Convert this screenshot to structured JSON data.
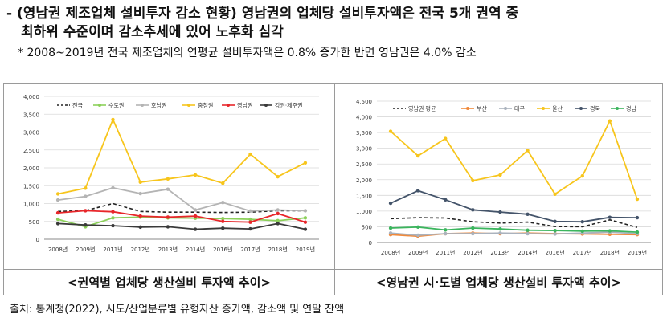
{
  "header": {
    "line1": "- (영남권 제조업체 설비투자 감소 현황) 영남권의 업체당 설비투자액은 전국 5개 권역 중",
    "line2": "최하위 수준이며 감소추세에 있어 노후화 심각",
    "note": "* 2008~2019년 전국 제조업체의 연평균 설비투자액은 0.8% 증가한 반면 영남권은 4.0% 감소"
  },
  "captions": {
    "left": "<권역별 업체당 생산설비 투자액 추이>",
    "right": "<영남권 시·도별 업체당 생산설비 투자액 추이>"
  },
  "source": "출처: 통계청(2022), 시도/산업분류별 유형자산 증가액, 감소액 및 연말 잔액",
  "chart_data": [
    {
      "type": "line",
      "categories": [
        "2008년",
        "2009년",
        "2011년",
        "2012년",
        "2013년",
        "2014년",
        "2016년",
        "2017년",
        "2018년",
        "2019년"
      ],
      "ylim": [
        0,
        4000
      ],
      "yticks": [
        "0",
        "500",
        "1,000",
        "1,500",
        "2,000",
        "2,500",
        "3,000",
        "3,500",
        "4,000"
      ],
      "grid": true,
      "legend": "top",
      "series": [
        {
          "name": "전국",
          "color": "#222222",
          "dash": true,
          "values": [
            780,
            800,
            1000,
            780,
            760,
            760,
            750,
            760,
            800,
            800
          ]
        },
        {
          "name": "수도권",
          "color": "#8cd05a",
          "dash": false,
          "values": [
            560,
            350,
            600,
            620,
            600,
            590,
            580,
            560,
            520,
            600
          ]
        },
        {
          "name": "호남권",
          "color": "#b4b4b4",
          "dash": false,
          "values": [
            1100,
            1200,
            1440,
            1280,
            1400,
            820,
            1030,
            790,
            820,
            800
          ]
        },
        {
          "name": "충청권",
          "color": "#f7c51c",
          "dash": false,
          "values": [
            1270,
            1430,
            3350,
            1600,
            1690,
            1800,
            1570,
            2380,
            1750,
            2140
          ]
        },
        {
          "name": "영남권",
          "color": "#e8262a",
          "dash": false,
          "values": [
            740,
            800,
            770,
            650,
            620,
            650,
            500,
            480,
            720,
            480
          ]
        },
        {
          "name": "강원·제주권",
          "color": "#3a3a3a",
          "dash": false,
          "values": [
            440,
            400,
            380,
            340,
            350,
            280,
            310,
            290,
            440,
            280
          ]
        }
      ]
    },
    {
      "type": "line",
      "categories": [
        "2008년",
        "2009년",
        "2011년",
        "2012년",
        "2013년",
        "2014년",
        "2016년",
        "2017년",
        "2018년",
        "2019년"
      ],
      "ylim": [
        0,
        4500
      ],
      "yticks": [
        "0",
        "500",
        "1,000",
        "1,500",
        "2,000",
        "2,500",
        "3,000",
        "3,500",
        "4,000",
        "4,500"
      ],
      "grid": true,
      "legend": "top",
      "series": [
        {
          "name": "영남권 평균",
          "color": "#222222",
          "dash": true,
          "values": [
            760,
            790,
            780,
            660,
            620,
            650,
            510,
            500,
            720,
            480
          ]
        },
        {
          "name": "부산",
          "color": "#f08a3c",
          "dash": false,
          "values": [
            250,
            200,
            280,
            300,
            280,
            300,
            280,
            270,
            260,
            250
          ]
        },
        {
          "name": "대구",
          "color": "#aab2bd",
          "dash": false,
          "values": [
            300,
            230,
            280,
            280,
            300,
            280,
            270,
            300,
            330,
            280
          ]
        },
        {
          "name": "울산",
          "color": "#f7c51c",
          "dash": false,
          "values": [
            3540,
            2760,
            3310,
            1970,
            2150,
            2930,
            1540,
            2120,
            3870,
            1380
          ]
        },
        {
          "name": "경북",
          "color": "#44546a",
          "dash": false,
          "values": [
            1250,
            1650,
            1360,
            1040,
            970,
            900,
            670,
            660,
            800,
            790
          ]
        },
        {
          "name": "경남",
          "color": "#3cb55e",
          "dash": false,
          "values": [
            460,
            490,
            400,
            460,
            430,
            390,
            380,
            360,
            370,
            330
          ]
        }
      ]
    }
  ]
}
